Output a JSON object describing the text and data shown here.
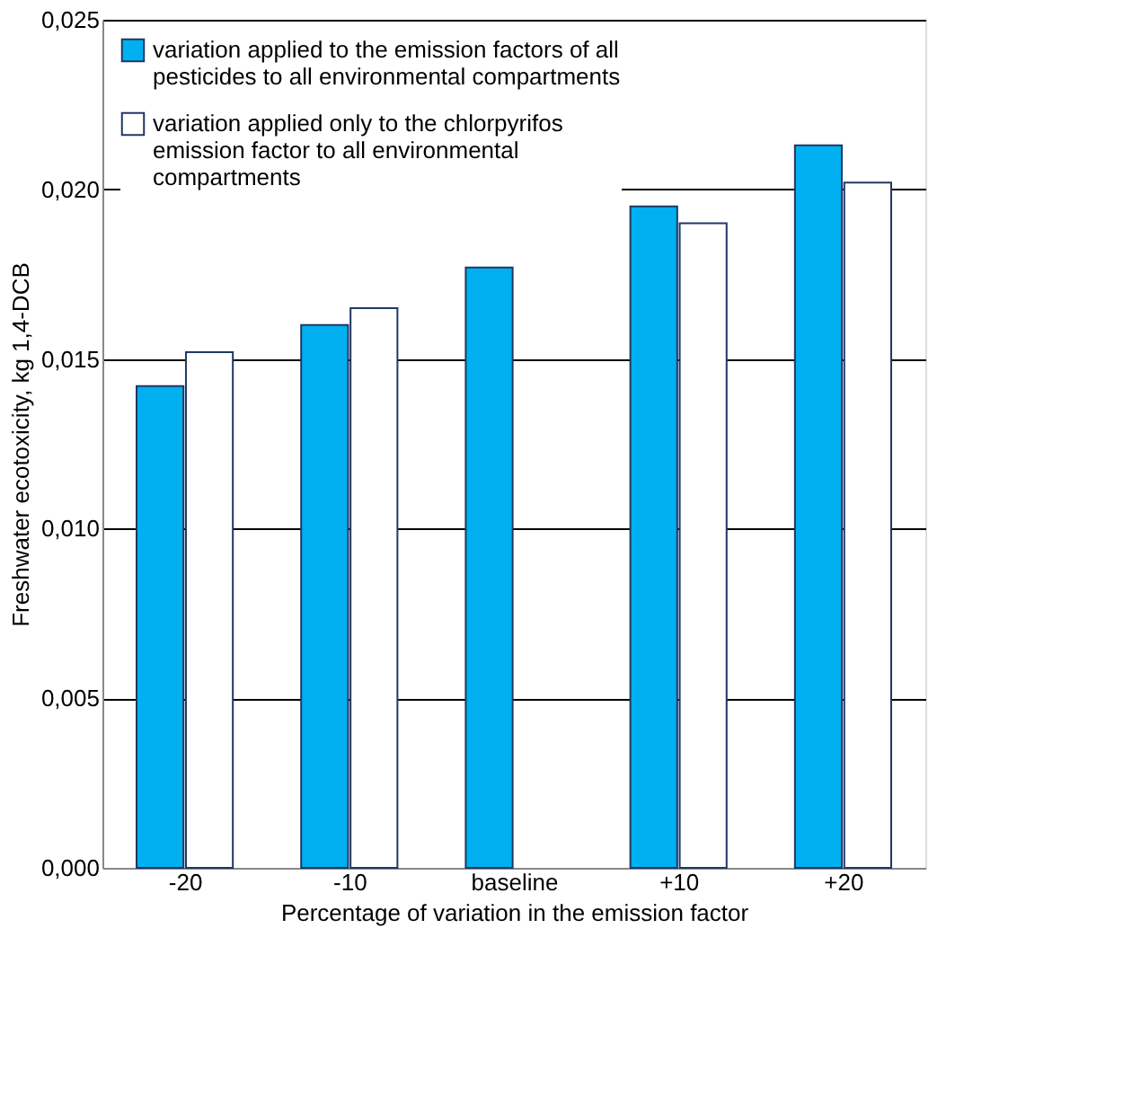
{
  "chart_data": {
    "type": "bar",
    "xlabel": "Percentage of variation in the emission factor",
    "ylabel": "Freshwater ecotoxicity, kg 1,4-DCB",
    "categories": [
      "-20",
      "-10",
      "baseline",
      "+10",
      "+20"
    ],
    "series": [
      {
        "name": "variation applied to the emission factors of all pesticides to all environmental compartments",
        "color": "#00b0f0",
        "values": [
          0.0142,
          0.016,
          0.0177,
          0.0195,
          0.0213
        ]
      },
      {
        "name": "variation applied only to the chlorpyrifos emission factor to all environmental compartments",
        "color": "#ffffff",
        "values": [
          0.0152,
          0.0165,
          null,
          0.019,
          0.0202
        ]
      }
    ],
    "ylim": [
      0,
      0.025
    ],
    "yticks": [
      {
        "value": 0,
        "label": "0,000"
      },
      {
        "value": 0.005,
        "label": "0,005"
      },
      {
        "value": 0.01,
        "label": "0,010"
      },
      {
        "value": 0.015,
        "label": "0,015"
      },
      {
        "value": 0.02,
        "label": "0,020"
      },
      {
        "value": 0.025,
        "label": "0,025"
      }
    ],
    "grid": "y",
    "legend": "top left"
  }
}
